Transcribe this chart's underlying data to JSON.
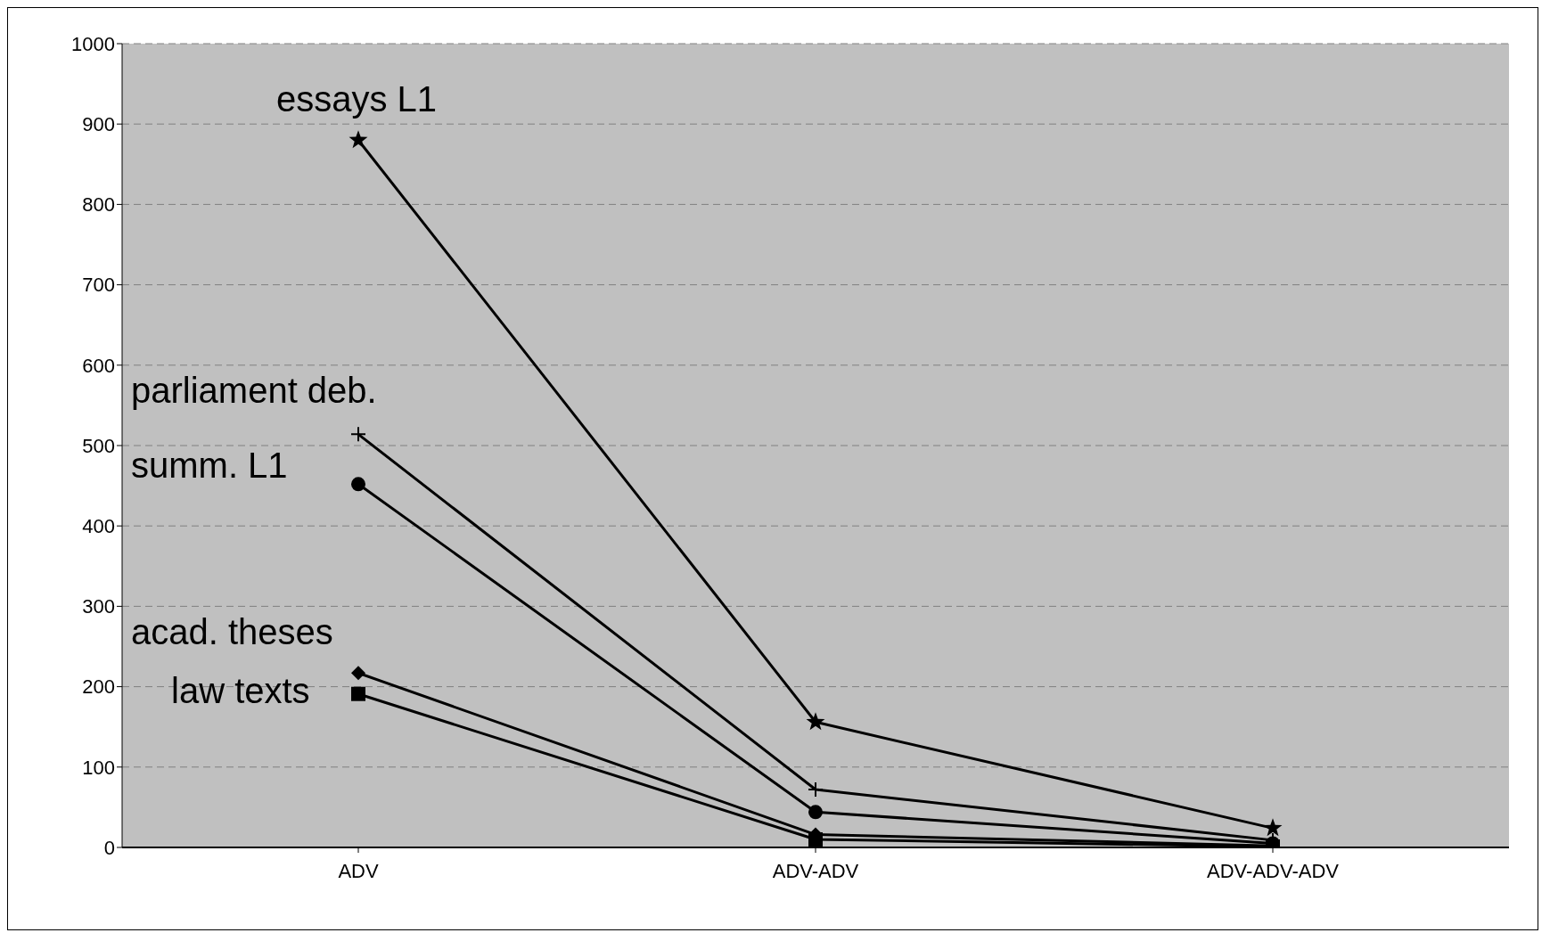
{
  "chart_data": {
    "type": "line",
    "categories": [
      "ADV",
      "ADV-ADV",
      "ADV-ADV-ADV"
    ],
    "series": [
      {
        "name": "essays L1",
        "color": "#000000",
        "marker": "star",
        "values": [
          880,
          156,
          24
        ]
      },
      {
        "name": "parliament deb.",
        "color": "#000000",
        "marker": "cross",
        "values": [
          514,
          72,
          9
        ]
      },
      {
        "name": "summ. L1",
        "color": "#000000",
        "marker": "circle",
        "values": [
          452,
          44,
          5
        ]
      },
      {
        "name": "acad. theses",
        "color": "#000000",
        "marker": "diamond",
        "values": [
          217,
          16,
          2
        ]
      },
      {
        "name": "law texts",
        "color": "#000000",
        "marker": "square",
        "values": [
          191,
          10,
          1
        ]
      }
    ],
    "ylim": [
      0,
      1000
    ],
    "yticks": [
      0,
      100,
      200,
      300,
      400,
      500,
      600,
      700,
      800,
      900,
      1000
    ],
    "grid": "y",
    "legend": false,
    "line_style": "solid"
  }
}
